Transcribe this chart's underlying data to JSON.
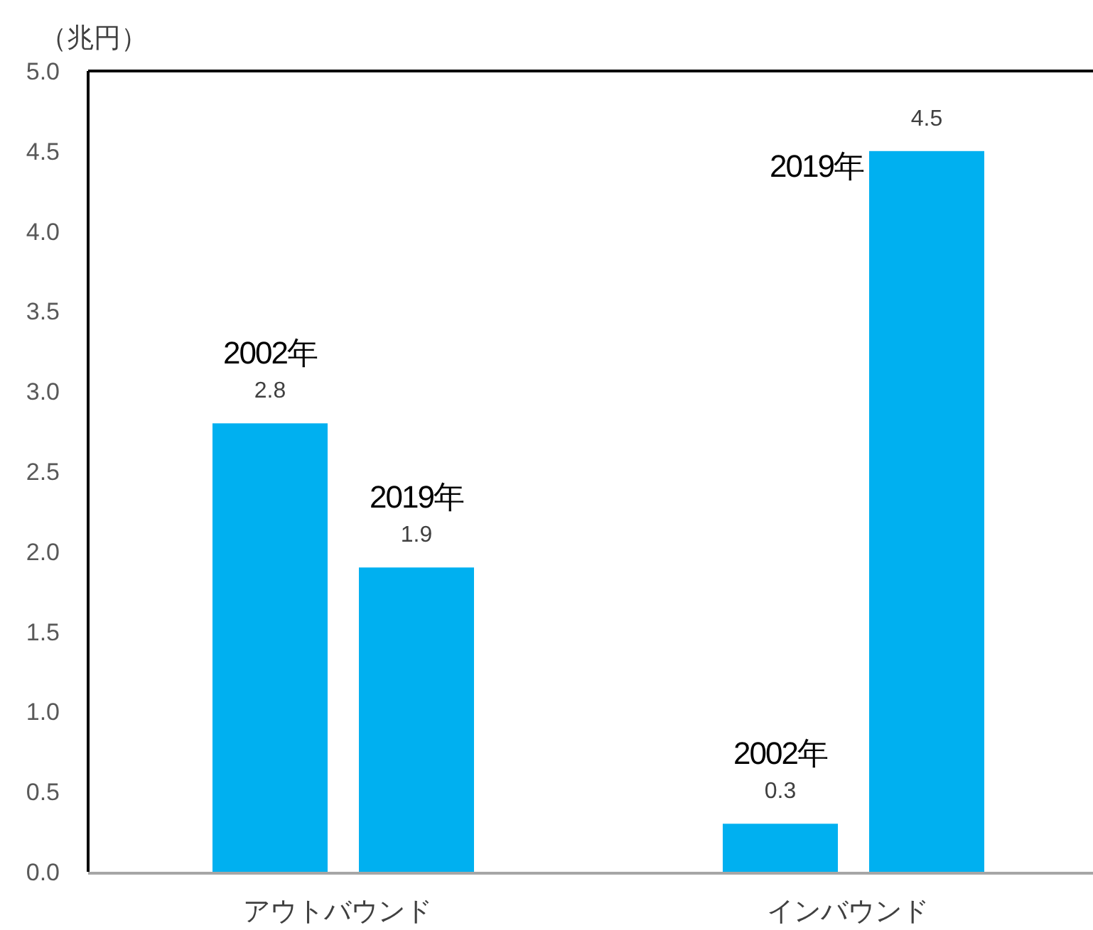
{
  "chart_data": {
    "type": "bar",
    "ylabel": "（兆円）",
    "categories": [
      "アウトバウンド",
      "インバウンド"
    ],
    "series": [
      {
        "name": "2002年",
        "color": "#00b0f0",
        "values": [
          2.8,
          0.3
        ]
      },
      {
        "name": "2019年",
        "color": "#00b0f0",
        "values": [
          1.9,
          4.5
        ]
      }
    ],
    "ylim": [
      0,
      5
    ],
    "yticks": [
      {
        "value": 0,
        "label": "0.0"
      },
      {
        "value": 0.5,
        "label": "0.5"
      },
      {
        "value": 1,
        "label": "1.0"
      },
      {
        "value": 1.5,
        "label": "1.5"
      },
      {
        "value": 2,
        "label": "2.0"
      },
      {
        "value": 2.5,
        "label": "2.5"
      },
      {
        "value": 3,
        "label": "3.0"
      },
      {
        "value": 3.5,
        "label": "3.5"
      },
      {
        "value": 4,
        "label": "4.0"
      },
      {
        "value": 4.5,
        "label": "4.5"
      },
      {
        "value": 5,
        "label": "5.0"
      }
    ],
    "data_labels": true,
    "grid": false
  }
}
